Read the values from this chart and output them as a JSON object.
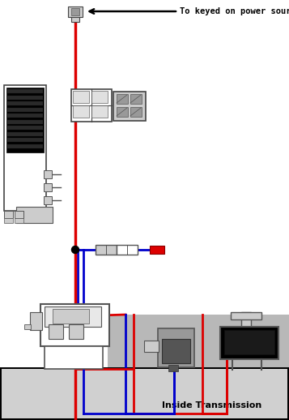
{
  "label_power": "To keyed on power source",
  "label_transmission": "Inside Transmission",
  "bg_color": "#ffffff",
  "gray_area_color": "#b8b8b8",
  "red_wire": "#dd0000",
  "blue_wire": "#0000cc",
  "black_color": "#000000",
  "light_gray": "#cccccc",
  "mid_gray": "#999999",
  "dark_gray": "#555555",
  "outline": "#444444",
  "wire_lw": 2.0,
  "figw": 3.57,
  "figh": 5.18,
  "dpi": 100
}
